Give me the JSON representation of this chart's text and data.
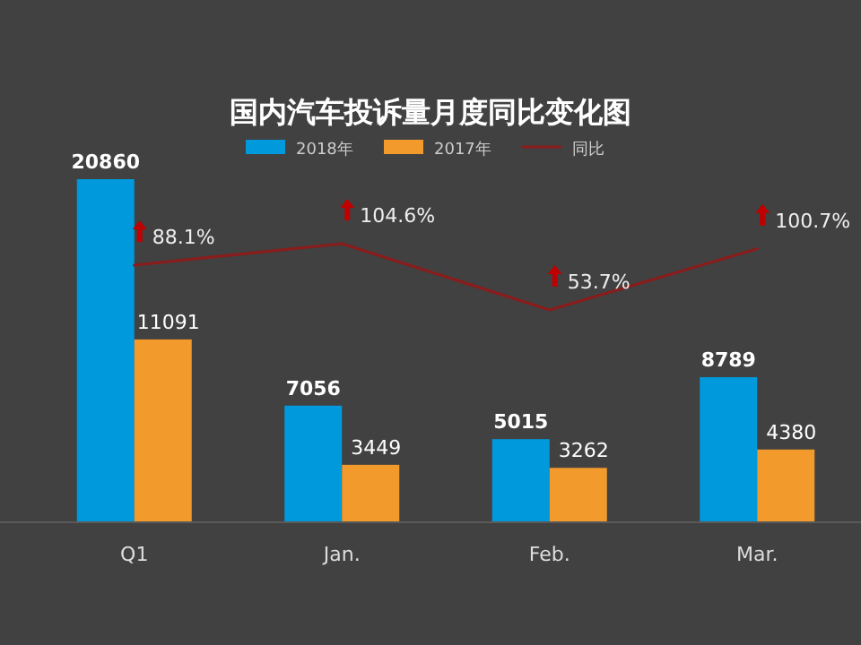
{
  "chart_data": {
    "type": "bar",
    "title": "国内汽车投诉量月度同比变化图",
    "categories": [
      "Q1",
      "Jan.",
      "Feb.",
      "Mar."
    ],
    "series": [
      {
        "name": "2018年",
        "color": "#0099db",
        "values": [
          20860,
          7056,
          5015,
          8789
        ]
      },
      {
        "name": "2017年",
        "color": "#f39a2c",
        "values": [
          11091,
          3449,
          3262,
          4380
        ]
      },
      {
        "name": "同比",
        "type": "line",
        "axis": "y2",
        "color": "#8b1c1c",
        "values": [
          88.1,
          104.6,
          53.7,
          100.7
        ],
        "value_labels": [
          "88.1%",
          "104.6%",
          "53.7%",
          "100.7%"
        ]
      }
    ],
    "data_labels": true,
    "legend": "top",
    "tick_labels": "x",
    "marker": "none",
    "line_style": "solid"
  }
}
